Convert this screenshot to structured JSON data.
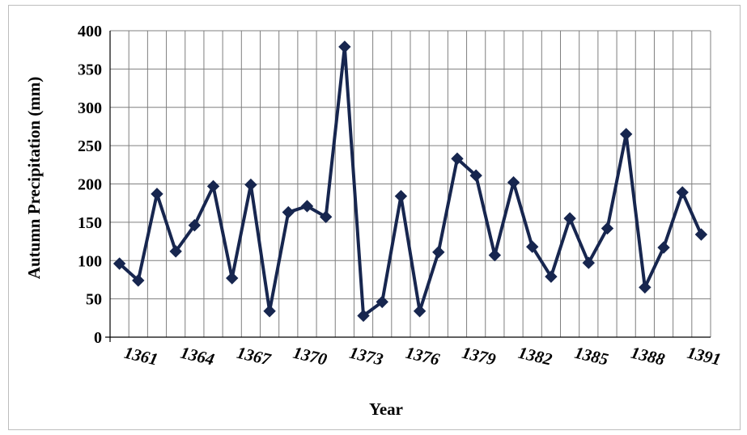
{
  "chart_data": {
    "type": "line",
    "title": "",
    "xlabel": "Year",
    "ylabel": "Autumn  Precipitation  (mm)",
    "x": [
      1360,
      1361,
      1362,
      1363,
      1364,
      1365,
      1366,
      1367,
      1368,
      1369,
      1370,
      1371,
      1372,
      1373,
      1374,
      1375,
      1376,
      1377,
      1378,
      1379,
      1380,
      1381,
      1382,
      1383,
      1384,
      1385,
      1386,
      1387,
      1388,
      1389,
      1390,
      1391
    ],
    "x_tick_labels": [
      "1361",
      "1364",
      "1367",
      "1370",
      "1373",
      "1376",
      "1379",
      "1382",
      "1385",
      "1388",
      "1391"
    ],
    "y_tick_labels": [
      "0",
      "50",
      "100",
      "150",
      "200",
      "250",
      "300",
      "350",
      "400"
    ],
    "ylim": [
      0,
      400
    ],
    "grid": true,
    "series": [
      {
        "color": "#17264f",
        "marker": "diamond",
        "values": [
          96,
          74,
          187,
          112,
          146,
          197,
          77,
          199,
          34,
          163,
          171,
          157,
          379,
          28,
          46,
          184,
          34,
          111,
          233,
          211,
          107,
          202,
          118,
          79,
          155,
          97,
          142,
          265,
          65,
          117,
          189,
          134
        ]
      }
    ]
  }
}
